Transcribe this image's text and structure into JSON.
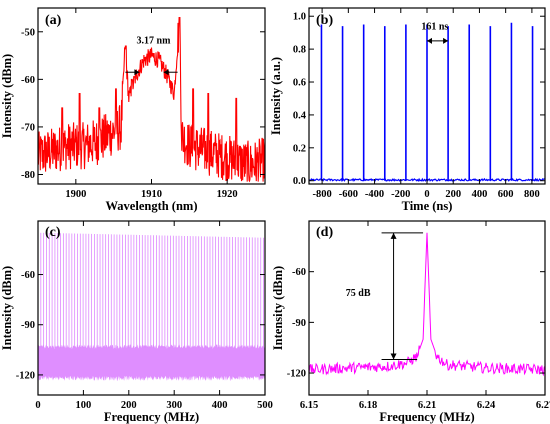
{
  "chart_data": [
    {
      "panel": "(a)",
      "type": "line",
      "xlabel": "Wavelength (nm)",
      "ylabel": "Intensity (dBm)",
      "xlim": [
        1895,
        1925
      ],
      "ylim": [
        -82,
        -45
      ],
      "xticks": [
        1900,
        1910,
        1920
      ],
      "yticks": [
        -50,
        -60,
        -70,
        -80
      ],
      "annotation": "3.17 nm",
      "color": "#ff0000",
      "series": [
        {
          "x": [
            1895,
            1897,
            1899,
            1901,
            1903,
            1905,
            1906,
            1906.5,
            1907,
            1908,
            1909,
            1910,
            1911,
            1912,
            1913,
            1913.7,
            1914,
            1915,
            1917,
            1919,
            1921,
            1923,
            1925
          ],
          "values": [
            -76,
            -75,
            -74,
            -74,
            -73,
            -71,
            -70,
            -53,
            -64,
            -59,
            -56,
            -55,
            -56,
            -59,
            -63,
            -47,
            -72,
            -74,
            -75,
            -76,
            -77,
            -78,
            -77
          ]
        }
      ]
    },
    {
      "panel": "(b)",
      "type": "line",
      "xlabel": "Time (ns)",
      "ylabel": "Intensity (a.u.)",
      "xlim": [
        -900,
        900
      ],
      "ylim": [
        -0.02,
        1.05
      ],
      "xticks": [
        -800,
        -600,
        -400,
        -200,
        0,
        200,
        400,
        600,
        800
      ],
      "yticks": [
        0.0,
        0.2,
        0.4,
        0.6,
        0.8,
        1.0
      ],
      "annotation": "161 ns",
      "color": "#0000ff",
      "series": [
        {
          "pulse_times": [
            -805,
            -644,
            -483,
            -322,
            -161,
            0,
            161,
            322,
            483,
            644,
            805
          ],
          "pulse_heights": [
            0.95,
            0.94,
            0.95,
            0.94,
            0.95,
            0.95,
            0.94,
            0.95,
            0.94,
            0.96,
            0.94
          ]
        }
      ]
    },
    {
      "panel": "(c)",
      "type": "line",
      "xlabel": "Frequency (MHz)",
      "ylabel": "Intensity (dBm)",
      "xlim": [
        0,
        500
      ],
      "ylim": [
        -132,
        -28
      ],
      "xticks": [
        0,
        100,
        200,
        300,
        400,
        500
      ],
      "yticks": [
        -60,
        -90,
        -120
      ],
      "color": "#dd88ff",
      "series": [
        {
          "harmonic_spacing_mhz": 6.21,
          "harmonic_peak_start": -35,
          "harmonic_peak_end": -38,
          "noise_floor": -104
        }
      ]
    },
    {
      "panel": "(d)",
      "type": "line",
      "xlabel": "Frequency (MHz)",
      "ylabel": "Intensity (dBm)",
      "xlim": [
        6.15,
        6.27
      ],
      "ylim": [
        -133,
        -30
      ],
      "xticks": [
        6.15,
        6.18,
        6.21,
        6.24,
        6.27
      ],
      "yticks": [
        -60,
        -90,
        -120
      ],
      "annotation": "75 dB",
      "color": "#ff00ff",
      "series": [
        {
          "x": [
            6.15,
            6.17,
            6.19,
            6.2,
            6.205,
            6.208,
            6.21,
            6.212,
            6.215,
            6.22,
            6.24,
            6.27
          ],
          "values": [
            -118,
            -117,
            -116,
            -114,
            -110,
            -100,
            -37,
            -100,
            -110,
            -115,
            -117,
            -118
          ]
        }
      ]
    }
  ]
}
